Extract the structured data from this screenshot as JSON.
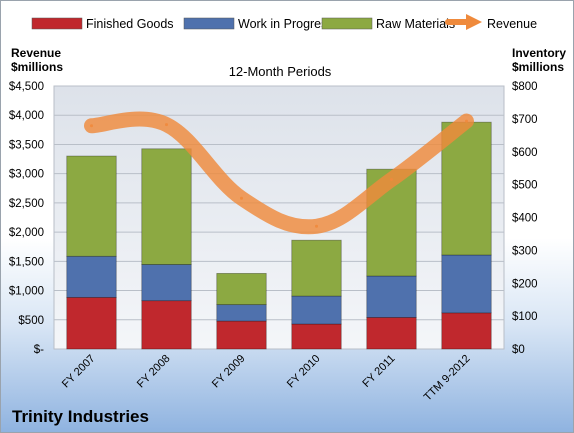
{
  "chart_data": {
    "type": "bar",
    "subtitle": "12-Month Periods",
    "footer_title": "Trinity Industries",
    "left_axis": {
      "label_line1": "Revenue",
      "label_line2": "$millions",
      "range": [
        0,
        4500
      ],
      "ticks": [
        "$-",
        "$500",
        "$1,000",
        "$1,500",
        "$2,000",
        "$2,500",
        "$3,000",
        "$3,500",
        "$4,000",
        "$4,500"
      ]
    },
    "right_axis": {
      "label_line1": "Inventory",
      "label_line2": "$millions",
      "range": [
        0,
        800
      ],
      "ticks": [
        "$0",
        "$100",
        "$200",
        "$300",
        "$400",
        "$500",
        "$600",
        "$700",
        "$800"
      ]
    },
    "grid": true,
    "legend_position": "top",
    "categories": [
      "FY 2007",
      "FY 2008",
      "FY 2009",
      "FY 2010",
      "FY 2011",
      "TTM 9-2012"
    ],
    "stacked_series": [
      {
        "name": "Finished Goods",
        "color": "#c0282d",
        "values": [
          157,
          147,
          85,
          76,
          96,
          110
        ]
      },
      {
        "name": "Work in Progress",
        "color": "#4f71ad",
        "values": [
          125,
          110,
          50,
          85,
          126,
          176
        ]
      },
      {
        "name": "Raw Materials",
        "color": "#8ca942",
        "values": [
          305,
          352,
          95,
          170,
          325,
          404
        ]
      }
    ],
    "line_series": {
      "name": "Revenue",
      "color": "#ef8a3c",
      "values": [
        3820,
        3840,
        2580,
        2100,
        2900,
        3900
      ]
    }
  }
}
